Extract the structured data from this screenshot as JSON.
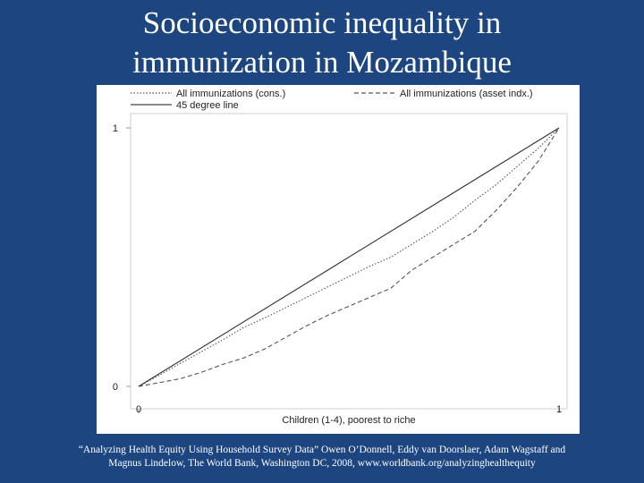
{
  "slide": {
    "title_line1": "Socioeconomic inequality in",
    "title_line2": "immunization in Mozambique",
    "caption_line1": "“Analyzing Health Equity Using Household Survey Data” Owen O’Donnell, Eddy van Doorslaer, Adam Wagstaff and",
    "caption_line2": "Magnus Lindelow, The World Bank, Washington DC, 2008, www.worldbank.org/analyzinghealthequity"
  },
  "chart_data": {
    "type": "line",
    "title": "",
    "xlabel": "Children (1-4), poorest to riche",
    "ylabel": "",
    "xlim": [
      0,
      1
    ],
    "ylim": [
      0,
      1
    ],
    "x_ticks": [
      "0",
      "1"
    ],
    "y_ticks": [
      "0",
      "1"
    ],
    "grid": false,
    "legend_position": "top",
    "series": [
      {
        "name": "All immunizations (cons.)",
        "style": "dotted",
        "x": [
          0,
          0.05,
          0.1,
          0.15,
          0.2,
          0.25,
          0.3,
          0.35,
          0.4,
          0.45,
          0.5,
          0.55,
          0.6,
          0.65,
          0.7,
          0.75,
          0.8,
          0.85,
          0.9,
          0.95,
          1
        ],
        "y": [
          0,
          0.044,
          0.09,
          0.135,
          0.18,
          0.228,
          0.265,
          0.305,
          0.345,
          0.385,
          0.425,
          0.465,
          0.5,
          0.55,
          0.6,
          0.655,
          0.72,
          0.78,
          0.85,
          0.92,
          1
        ]
      },
      {
        "name": "All immunizations (asset indx.)",
        "style": "dashed",
        "x": [
          0,
          0.05,
          0.1,
          0.15,
          0.2,
          0.25,
          0.3,
          0.35,
          0.4,
          0.45,
          0.5,
          0.55,
          0.6,
          0.65,
          0.7,
          0.75,
          0.8,
          0.85,
          0.9,
          0.95,
          1
        ],
        "y": [
          0,
          0.015,
          0.03,
          0.055,
          0.085,
          0.11,
          0.145,
          0.19,
          0.235,
          0.275,
          0.31,
          0.345,
          0.38,
          0.45,
          0.5,
          0.55,
          0.6,
          0.68,
          0.77,
          0.87,
          1
        ]
      },
      {
        "name": "45 degree line",
        "style": "solid",
        "x": [
          0,
          1
        ],
        "y": [
          0,
          1
        ]
      }
    ]
  }
}
